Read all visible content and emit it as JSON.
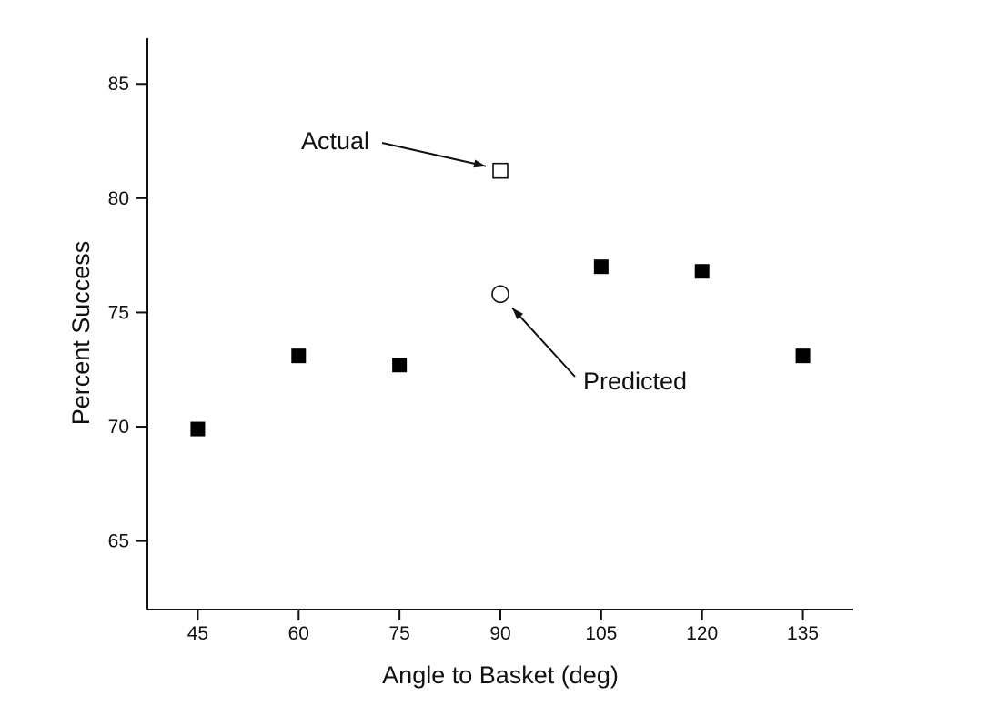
{
  "chart_data": {
    "type": "scatter",
    "title": "",
    "xlabel": "Angle to Basket (deg)",
    "ylabel": "Percent Success",
    "xlim": [
      37.5,
      142.5
    ],
    "ylim": [
      62,
      87
    ],
    "xticks": [
      45,
      60,
      75,
      90,
      105,
      120,
      135
    ],
    "yticks": [
      65,
      70,
      75,
      80,
      85
    ],
    "grid": false,
    "series": [
      {
        "marker": "filled-square",
        "points": [
          {
            "x": 45,
            "y": 69.9
          },
          {
            "x": 60,
            "y": 73.1
          },
          {
            "x": 75,
            "y": 72.7
          },
          {
            "x": 105,
            "y": 77.0
          },
          {
            "x": 120,
            "y": 76.8
          },
          {
            "x": 135,
            "y": 73.1
          }
        ]
      },
      {
        "name": "Actual",
        "marker": "open-square",
        "points": [
          {
            "x": 90,
            "y": 81.2
          }
        ]
      },
      {
        "name": "Predicted",
        "marker": "open-circle",
        "points": [
          {
            "x": 90,
            "y": 75.8
          }
        ]
      }
    ],
    "annotations": [
      {
        "text": "Actual",
        "x": 90,
        "y": 81.2
      },
      {
        "text": "Predicted",
        "x": 90,
        "y": 75.8
      }
    ]
  }
}
